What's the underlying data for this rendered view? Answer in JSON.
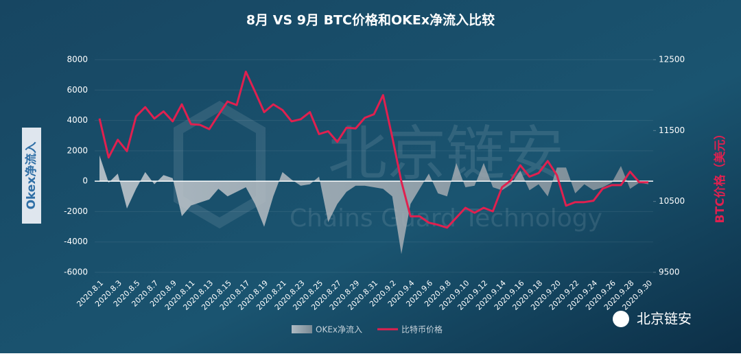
{
  "chart_data": {
    "type": "combo",
    "title": "8月 VS 9月 BTC价格和OKEx净流入比较",
    "y_label": "Okex净流入",
    "y2_label": "BTC价格（美元）",
    "watermark": "北京链安",
    "watermark_sub": "Chains Guard Technology",
    "logo_text": "北京链安",
    "categories": [
      "2020.8.1",
      null,
      "2020.8.3",
      null,
      "2020.8.5",
      null,
      "2020.8.7",
      null,
      "2020.8.9",
      null,
      "2020.8.11",
      null,
      "2020.8.13",
      null,
      "2020.8.15",
      null,
      "2020.8.17",
      null,
      "2020.8.19",
      null,
      "2020.8.21",
      null,
      "2020.8.23",
      null,
      "2020.8.25",
      null,
      "2020.8.27",
      null,
      "2020.8.29",
      null,
      "2020.8.31",
      null,
      "2020.9.2",
      null,
      "2020.9.4",
      null,
      "2020.9.6",
      null,
      "2020.9.8",
      null,
      "2020.9.10",
      null,
      "2020.9.12",
      null,
      "2020.9.14",
      null,
      "2020.9.16",
      null,
      "2020.9.18",
      null,
      "2020.9.20",
      null,
      "2020.9.22",
      null,
      "2020.9.24",
      null,
      "2020.9.26",
      null,
      "2020.9.28",
      null,
      "2020.9.30"
    ],
    "ylim": [
      -6000,
      8000
    ],
    "yticks": [
      -6000,
      -4000,
      -2000,
      0,
      2000,
      4000,
      6000,
      8000
    ],
    "y2lim": [
      9500,
      12500
    ],
    "y2ticks": [
      9500,
      10500,
      11500,
      12500
    ],
    "series": [
      {
        "name": "OKEx净流入",
        "type": "area",
        "color": "#b8bec4",
        "values": [
          1700,
          -100,
          500,
          -1800,
          -500,
          600,
          -200,
          400,
          200,
          -2300,
          -1600,
          -1400,
          -1200,
          -500,
          -1000,
          -700,
          -400,
          -1500,
          -3000,
          -1000,
          600,
          100,
          -300,
          -200,
          300,
          -2700,
          -1500,
          -700,
          -300,
          -300,
          -400,
          -500,
          -1000,
          -4800,
          -1500,
          -500,
          500,
          -800,
          -1000,
          1200,
          -400,
          -300,
          1200,
          -400,
          -600,
          -200,
          700,
          -600,
          -200,
          -1000,
          900,
          900,
          -800,
          -200,
          -600,
          -400,
          -100,
          1000,
          -500,
          -100,
          -200
        ]
      },
      {
        "name": "比特币价格",
        "type": "line",
        "axis": "y2",
        "color": "#e0204f",
        "values": [
          11670,
          11120,
          11370,
          11210,
          11700,
          11830,
          11670,
          11770,
          11630,
          11870,
          11590,
          11580,
          11520,
          11720,
          11910,
          11860,
          12330,
          12050,
          11760,
          11870,
          11790,
          11630,
          11660,
          11760,
          11450,
          11490,
          11340,
          11540,
          11530,
          11680,
          11730,
          12000,
          11410,
          10780,
          10290,
          10290,
          10200,
          10170,
          10130,
          10270,
          10410,
          10340,
          10410,
          10360,
          10700,
          10800,
          11010,
          10850,
          10900,
          11070,
          10870,
          10440,
          10490,
          10490,
          10510,
          10680,
          10730,
          10730,
          10920,
          10770,
          10770
        ]
      }
    ]
  }
}
